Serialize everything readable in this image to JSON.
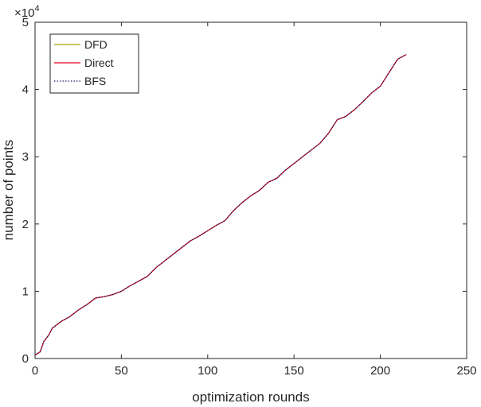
{
  "chart_data": {
    "type": "line",
    "xlabel": "optimization rounds",
    "ylabel": "number of points",
    "y_exponent_label": "×10",
    "y_exponent_power": "4",
    "xlim": [
      0,
      250
    ],
    "ylim": [
      0,
      5
    ],
    "x_ticks": [
      "0",
      "50",
      "100",
      "150",
      "200",
      "250"
    ],
    "y_ticks": [
      "0",
      "1",
      "2",
      "3",
      "4",
      "5"
    ],
    "grid": false,
    "legend_position": "top-left",
    "series": [
      {
        "name": "DFD",
        "color": "#a5a500",
        "style": "solid",
        "points": [
          [
            0,
            0.05
          ],
          [
            3,
            0.1
          ],
          [
            5,
            0.25
          ],
          [
            8,
            0.35
          ],
          [
            10,
            0.45
          ],
          [
            15,
            0.55
          ],
          [
            20,
            0.62
          ],
          [
            25,
            0.72
          ],
          [
            30,
            0.8
          ],
          [
            35,
            0.9
          ],
          [
            40,
            0.92
          ],
          [
            45,
            0.95
          ],
          [
            50,
            1.0
          ],
          [
            55,
            1.08
          ],
          [
            60,
            1.15
          ],
          [
            65,
            1.22
          ],
          [
            70,
            1.35
          ],
          [
            75,
            1.45
          ],
          [
            80,
            1.55
          ],
          [
            85,
            1.65
          ],
          [
            90,
            1.75
          ],
          [
            95,
            1.82
          ],
          [
            100,
            1.9
          ],
          [
            105,
            1.98
          ],
          [
            110,
            2.05
          ],
          [
            115,
            2.2
          ],
          [
            120,
            2.32
          ],
          [
            125,
            2.42
          ],
          [
            130,
            2.5
          ],
          [
            135,
            2.62
          ],
          [
            140,
            2.68
          ],
          [
            145,
            2.8
          ],
          [
            150,
            2.9
          ],
          [
            155,
            3.0
          ],
          [
            160,
            3.1
          ],
          [
            165,
            3.2
          ],
          [
            170,
            3.35
          ],
          [
            175,
            3.55
          ],
          [
            180,
            3.6
          ],
          [
            185,
            3.7
          ],
          [
            190,
            3.82
          ],
          [
            195,
            3.95
          ],
          [
            200,
            4.05
          ],
          [
            205,
            4.25
          ],
          [
            210,
            4.45
          ],
          [
            215,
            4.52
          ]
        ]
      },
      {
        "name": "Direct",
        "color": "#e3001b",
        "style": "solid",
        "points": [
          [
            0,
            0.05
          ],
          [
            3,
            0.1
          ],
          [
            5,
            0.25
          ],
          [
            8,
            0.35
          ],
          [
            10,
            0.45
          ],
          [
            15,
            0.55
          ],
          [
            20,
            0.62
          ],
          [
            25,
            0.72
          ],
          [
            30,
            0.8
          ],
          [
            35,
            0.9
          ],
          [
            40,
            0.92
          ],
          [
            45,
            0.95
          ],
          [
            50,
            1.0
          ],
          [
            55,
            1.08
          ],
          [
            60,
            1.15
          ],
          [
            65,
            1.22
          ],
          [
            70,
            1.35
          ],
          [
            75,
            1.45
          ],
          [
            80,
            1.55
          ],
          [
            85,
            1.65
          ],
          [
            90,
            1.75
          ],
          [
            95,
            1.82
          ],
          [
            100,
            1.9
          ],
          [
            105,
            1.98
          ],
          [
            110,
            2.05
          ],
          [
            115,
            2.2
          ],
          [
            120,
            2.32
          ],
          [
            125,
            2.42
          ],
          [
            130,
            2.5
          ],
          [
            135,
            2.62
          ],
          [
            140,
            2.68
          ],
          [
            145,
            2.8
          ],
          [
            150,
            2.9
          ],
          [
            155,
            3.0
          ],
          [
            160,
            3.1
          ],
          [
            165,
            3.2
          ],
          [
            170,
            3.35
          ],
          [
            175,
            3.55
          ],
          [
            180,
            3.6
          ],
          [
            185,
            3.7
          ],
          [
            190,
            3.82
          ],
          [
            195,
            3.95
          ],
          [
            200,
            4.05
          ],
          [
            205,
            4.25
          ],
          [
            210,
            4.45
          ],
          [
            215,
            4.52
          ]
        ]
      },
      {
        "name": "BFS",
        "color": "#1f1f6e",
        "style": "dotted",
        "points": [
          [
            0,
            0.05
          ],
          [
            3,
            0.1
          ],
          [
            5,
            0.25
          ],
          [
            8,
            0.35
          ],
          [
            10,
            0.45
          ],
          [
            15,
            0.55
          ],
          [
            20,
            0.62
          ],
          [
            25,
            0.72
          ],
          [
            30,
            0.8
          ],
          [
            35,
            0.9
          ],
          [
            40,
            0.92
          ],
          [
            45,
            0.95
          ],
          [
            50,
            1.0
          ],
          [
            55,
            1.08
          ],
          [
            60,
            1.15
          ],
          [
            65,
            1.22
          ],
          [
            70,
            1.35
          ],
          [
            75,
            1.45
          ],
          [
            80,
            1.55
          ],
          [
            85,
            1.65
          ],
          [
            90,
            1.75
          ],
          [
            95,
            1.82
          ],
          [
            100,
            1.9
          ],
          [
            105,
            1.98
          ],
          [
            110,
            2.05
          ],
          [
            115,
            2.2
          ],
          [
            120,
            2.32
          ],
          [
            125,
            2.42
          ],
          [
            130,
            2.5
          ],
          [
            135,
            2.62
          ],
          [
            140,
            2.68
          ],
          [
            145,
            2.8
          ],
          [
            150,
            2.9
          ],
          [
            155,
            3.0
          ],
          [
            160,
            3.1
          ],
          [
            165,
            3.2
          ],
          [
            170,
            3.35
          ],
          [
            175,
            3.55
          ],
          [
            180,
            3.6
          ],
          [
            185,
            3.7
          ],
          [
            190,
            3.82
          ],
          [
            195,
            3.95
          ],
          [
            200,
            4.05
          ],
          [
            205,
            4.25
          ],
          [
            210,
            4.45
          ],
          [
            215,
            4.52
          ]
        ]
      }
    ]
  }
}
